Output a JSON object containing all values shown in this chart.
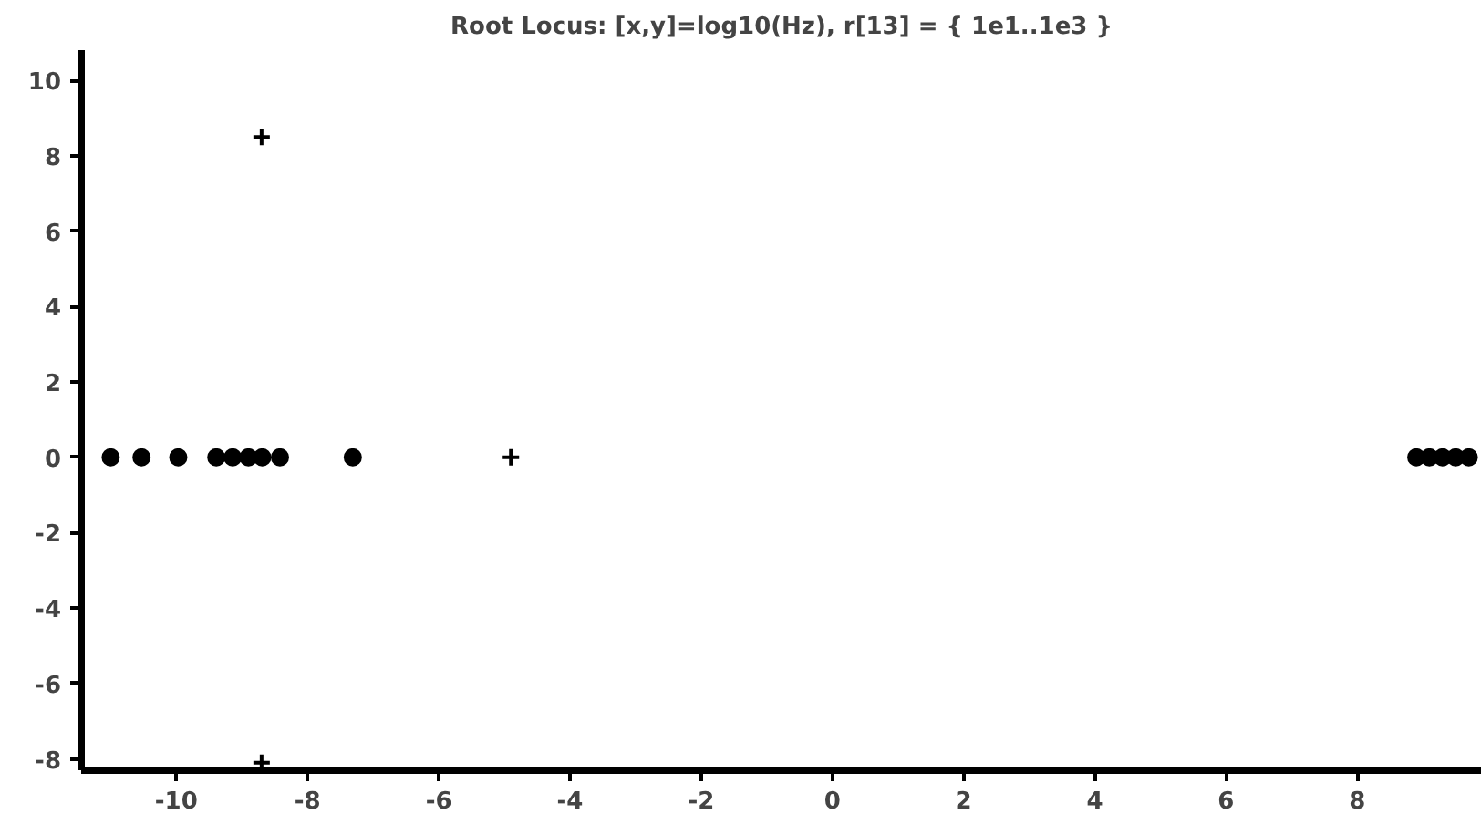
{
  "chart_data": {
    "type": "scatter",
    "title": "Root Locus: [x,y]=log10(Hz), r[13] = { 1e1..1e3 }",
    "xlim": [
      -11.45,
      9.9
    ],
    "ylim": [
      -8.3,
      10.8
    ],
    "xticks": [
      -10,
      -8,
      -6,
      -4,
      -2,
      0,
      2,
      4,
      6,
      8
    ],
    "yticks": [
      -8,
      -6,
      -4,
      -2,
      0,
      2,
      4,
      6,
      8,
      10
    ],
    "series": [
      {
        "marker": "circle",
        "color": "#000000",
        "x": [
          -11.0,
          -10.53,
          -9.97,
          -9.39,
          -9.14,
          -8.9,
          -8.69,
          -8.42,
          -7.31,
          8.9,
          9.1,
          9.3,
          9.5,
          9.7
        ],
        "values": [
          0,
          0,
          0,
          0,
          0,
          0,
          0,
          0,
          0,
          0,
          0,
          0,
          0,
          0
        ]
      },
      {
        "marker": "cross",
        "color": "#000000",
        "x": [
          -8.7,
          -8.7,
          -4.9
        ],
        "values": [
          8.5,
          -8.1,
          0
        ]
      }
    ]
  }
}
